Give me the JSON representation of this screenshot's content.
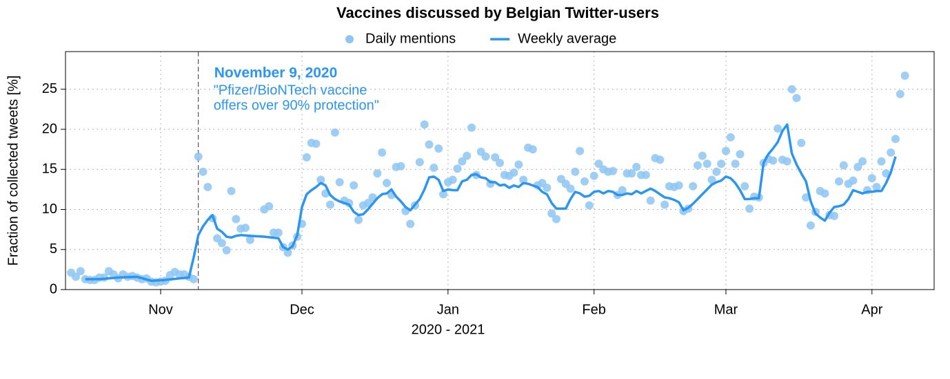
{
  "chart_data": {
    "type": "line",
    "title": "Vaccines discussed by Belgian Twitter-users",
    "xlabel": "2020 - 2021",
    "ylabel": "Fraction of collected tweets [%]",
    "xlim": [
      10.8,
      195.2
    ],
    "xticks": [
      {
        "value": 31,
        "label": "Nov"
      },
      {
        "value": 61,
        "label": "Dec"
      },
      {
        "value": 92,
        "label": "Jan"
      },
      {
        "value": 123,
        "label": "Feb"
      },
      {
        "value": 151,
        "label": "Mar"
      },
      {
        "value": 182,
        "label": "Apr"
      }
    ],
    "ylim": [
      0,
      29.7
    ],
    "yticks": [
      0,
      5,
      10,
      15,
      20,
      25
    ],
    "grid": true,
    "legend": "top",
    "annotation": {
      "x": 39,
      "title": "November 9, 2020",
      "text": [
        "\"Pfizer/BioNTech vaccine",
        "offers over 90% protection\""
      ],
      "color": "#2b95f0"
    },
    "series": [
      {
        "name": "Daily mentions",
        "type": "scatter",
        "color": "#8ec5f3",
        "x": [
          12,
          13,
          14,
          15,
          16,
          17,
          18,
          19,
          20,
          21,
          22,
          23,
          24,
          25,
          26,
          27,
          28,
          29,
          30,
          31,
          32,
          33,
          34,
          35,
          36,
          37,
          38,
          39,
          40,
          41,
          42,
          43,
          44,
          45,
          46,
          47,
          48,
          49,
          50,
          53,
          54,
          55,
          56,
          57,
          58,
          59,
          60,
          61,
          62,
          63,
          64,
          65,
          66,
          67,
          68,
          69,
          70,
          71,
          72,
          73,
          74,
          75,
          76,
          77,
          78,
          79,
          80,
          81,
          82,
          83,
          84,
          85,
          86,
          87,
          88,
          89,
          90,
          91,
          92,
          93,
          94,
          95,
          96,
          97,
          98,
          99,
          100,
          101,
          102,
          103,
          104,
          105,
          106,
          107,
          108,
          109,
          110,
          111,
          112,
          113,
          114,
          115,
          116,
          117,
          118,
          119,
          120,
          121,
          122,
          123,
          124,
          125,
          126,
          127,
          128,
          129,
          130,
          131,
          132,
          133,
          134,
          135,
          136,
          137,
          138,
          139,
          140,
          141,
          142,
          143,
          144,
          145,
          146,
          147,
          148,
          149,
          150,
          151,
          152,
          153,
          154,
          155,
          156,
          157,
          158,
          159,
          160,
          161,
          162,
          163,
          164,
          165,
          166,
          167,
          168,
          169,
          170,
          171,
          172,
          173,
          174,
          175,
          176,
          177,
          178,
          179,
          180,
          181,
          182,
          183,
          184,
          185,
          186,
          187,
          188,
          189
        ],
        "values": [
          2.1,
          1.6,
          2.3,
          1.3,
          1.2,
          1.2,
          1.5,
          1.5,
          2.3,
          1.9,
          1.4,
          1.9,
          1.6,
          1.7,
          1.5,
          1.3,
          1.4,
          1.0,
          0.9,
          1.0,
          1.1,
          1.8,
          2.2,
          1.9,
          1.9,
          1.6,
          1.3,
          16.6,
          14.7,
          12.8,
          8.9,
          6.4,
          5.8,
          4.9,
          12.3,
          8.8,
          7.6,
          7.7,
          6.2,
          10.0,
          10.4,
          7.1,
          7.1,
          5.3,
          4.6,
          5.5,
          6.6,
          8.2,
          16.5,
          18.3,
          18.2,
          13.7,
          12.0,
          10.6,
          19.6,
          13.4,
          11.1,
          10.8,
          13.0,
          8.7,
          10.5,
          10.8,
          11.5,
          14.5,
          17.1,
          13.3,
          11.8,
          15.3,
          15.4,
          9.8,
          8.2,
          10.5,
          15.9,
          20.6,
          18.1,
          15.2,
          17.6,
          11.9,
          13.4,
          13.7,
          15.1,
          16.0,
          16.7,
          20.2,
          14.3,
          17.2,
          16.6,
          13.2,
          16.5,
          15.8,
          14.3,
          14.2,
          14.6,
          15.6,
          13.7,
          17.7,
          17.5,
          13.0,
          13.3,
          12.7,
          9.5,
          8.8,
          13.8,
          13.2,
          12.6,
          14.7,
          17.3,
          13.5,
          10.5,
          14.2,
          15.7,
          15.0,
          14.7,
          14.8,
          11.8,
          12.4,
          14.5,
          14.5,
          15.3,
          14.3,
          14.3,
          11.1,
          16.4,
          16.2,
          10.6,
          12.9,
          12.8,
          13.0,
          9.8,
          10.1,
          12.9,
          15.5,
          16.7,
          15.7,
          13.7,
          14.7,
          15.7,
          17.3,
          19.0,
          15.7,
          16.9,
          12.9,
          10.1,
          11.6,
          11.5,
          15.8,
          16.3,
          16.1,
          20.1,
          16.2,
          16.0,
          25.0,
          23.9,
          18.3,
          11.5,
          8.0,
          9.7,
          12.3,
          12.0,
          9.3,
          9.2,
          13.5,
          15.5,
          13.2,
          13.6,
          15.3,
          16.0,
          12.4,
          13.9,
          12.8,
          16.0,
          14.5,
          17.1,
          18.8,
          24.4,
          26.7
        ]
      },
      {
        "name": "Weekly average",
        "type": "line",
        "color": "#2b95f0",
        "x": [
          15,
          18,
          22,
          26,
          29,
          32,
          35,
          37,
          38,
          39,
          40,
          41,
          42,
          43,
          44,
          45,
          46,
          47,
          48,
          50,
          53,
          56,
          57,
          58,
          59,
          60,
          61,
          62,
          63,
          64,
          65,
          66,
          67,
          68,
          69,
          71,
          72,
          73,
          74,
          75,
          76,
          77,
          78,
          79,
          80,
          81,
          82,
          83,
          84,
          85,
          86,
          87,
          88,
          89,
          90,
          91,
          92,
          93,
          94,
          95,
          96,
          97,
          98,
          99,
          100,
          101,
          102,
          103,
          104,
          105,
          106,
          107,
          108,
          109,
          110,
          111,
          112,
          113,
          114,
          115,
          116,
          117,
          118,
          119,
          120,
          121,
          122,
          123,
          124,
          125,
          126,
          127,
          128,
          129,
          130,
          131,
          132,
          133,
          134,
          135,
          136,
          137,
          138,
          139,
          140,
          141,
          142,
          143,
          144,
          145,
          146,
          147,
          148,
          149,
          150,
          151,
          152,
          153,
          154,
          155,
          156,
          157,
          158,
          159,
          160,
          161,
          162,
          163,
          164,
          165,
          166,
          167,
          168,
          169,
          170,
          171,
          172,
          173,
          174,
          175,
          176,
          177,
          178,
          179,
          180,
          181,
          182,
          183,
          184,
          185,
          186,
          187
        ],
        "values": [
          1.3,
          1.3,
          1.5,
          1.6,
          1.1,
          1.2,
          1.4,
          1.5,
          4.0,
          6.8,
          7.9,
          8.7,
          9.3,
          7.6,
          7.2,
          6.6,
          6.5,
          6.7,
          6.8,
          6.7,
          6.6,
          6.4,
          5.3,
          5.0,
          5.4,
          6.8,
          10.3,
          11.9,
          12.4,
          12.8,
          13.3,
          13.0,
          11.8,
          11.3,
          11.0,
          10.6,
          9.7,
          9.3,
          9.4,
          10.0,
          10.7,
          11.4,
          11.9,
          12.0,
          12.5,
          11.6,
          11.0,
          10.3,
          9.9,
          10.6,
          11.3,
          12.5,
          14.0,
          14.1,
          13.7,
          12.3,
          12.5,
          12.4,
          12.4,
          13.5,
          13.7,
          14.3,
          14.4,
          14.0,
          13.9,
          13.4,
          13.4,
          13.0,
          13.1,
          12.7,
          13.0,
          12.8,
          13.3,
          13.2,
          13.0,
          12.8,
          12.2,
          11.9,
          10.8,
          10.1,
          10.1,
          10.1,
          11.3,
          12.2,
          12.0,
          11.6,
          11.7,
          12.2,
          12.3,
          12.0,
          12.3,
          12.2,
          11.8,
          11.8,
          12.0,
          11.9,
          12.3,
          12.0,
          12.3,
          12.6,
          12.3,
          11.9,
          11.5,
          11.4,
          11.2,
          10.9,
          9.9,
          10.2,
          10.7,
          11.3,
          11.9,
          12.5,
          13.1,
          13.4,
          13.6,
          14.1,
          13.9,
          13.3,
          12.4,
          11.3,
          11.3,
          11.4,
          11.4,
          15.8,
          16.9,
          17.6,
          18.4,
          19.8,
          20.6,
          17.0,
          15.6,
          14.5,
          13.5,
          11.0,
          9.5,
          9.0,
          8.6,
          9.6,
          10.3,
          10.4,
          10.6,
          11.3,
          12.4,
          12.2,
          12.0,
          12.2,
          12.2,
          12.3,
          12.3,
          13.3,
          14.6,
          16.6
        ]
      }
    ]
  }
}
